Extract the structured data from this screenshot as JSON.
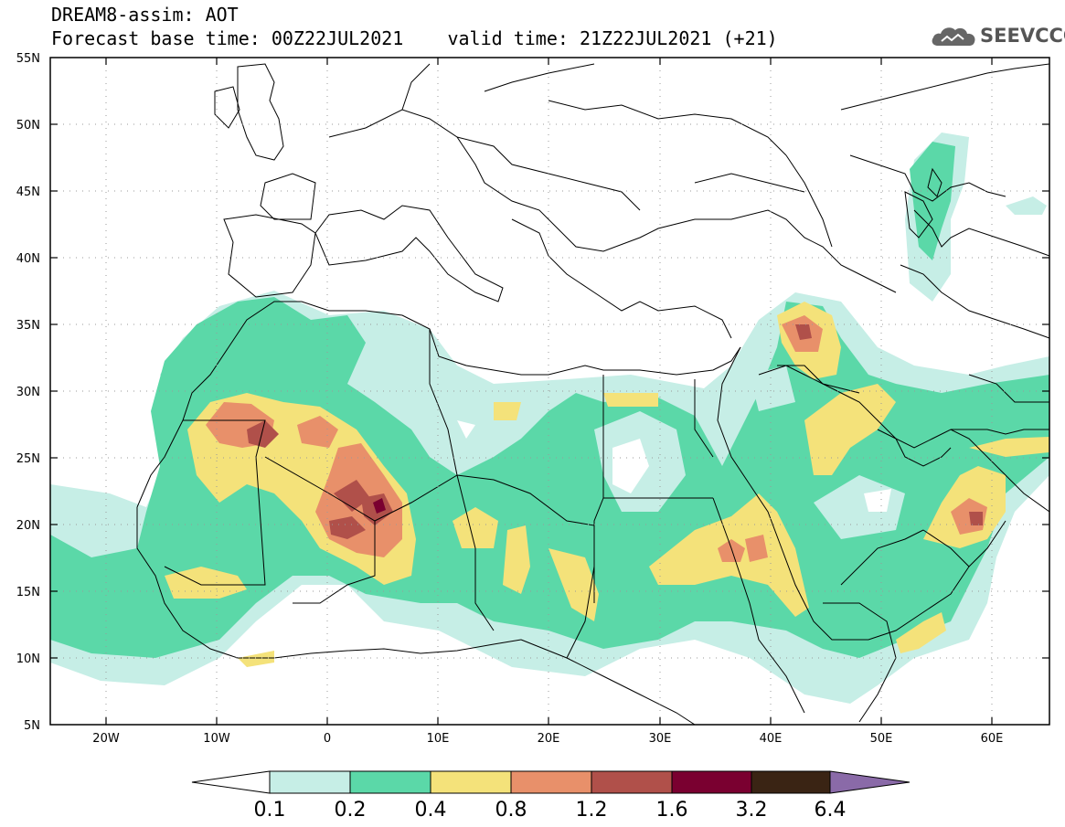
{
  "header": {
    "title_line1": "DREAM8-assim: AOT",
    "title_line2": "Forecast base time: 00Z22JUL2021    valid time: 21Z22JUL2021 (+21)",
    "logo_text": "SEEVCCC"
  },
  "map": {
    "lat_labels": [
      "55N",
      "50N",
      "45N",
      "40N",
      "35N",
      "30N",
      "25N",
      "20N",
      "15N",
      "10N",
      "5N"
    ],
    "lon_labels": [
      "20W",
      "10W",
      "0",
      "10E",
      "20E",
      "30E",
      "40E",
      "50E",
      "60E"
    ],
    "extent": {
      "lon": [
        -25,
        65
      ],
      "lat": [
        5,
        55
      ]
    },
    "variable": "AOT"
  },
  "colorbar": {
    "levels": [
      "0.1",
      "0.2",
      "0.4",
      "0.8",
      "1.2",
      "1.6",
      "3.2",
      "6.4"
    ],
    "colors": [
      "#ffffff",
      "#c6eee6",
      "#5bd8a8",
      "#f4e27a",
      "#e8906a",
      "#b0504a",
      "#7a0030",
      "#3a2414",
      "#8a6aa8"
    ]
  }
}
